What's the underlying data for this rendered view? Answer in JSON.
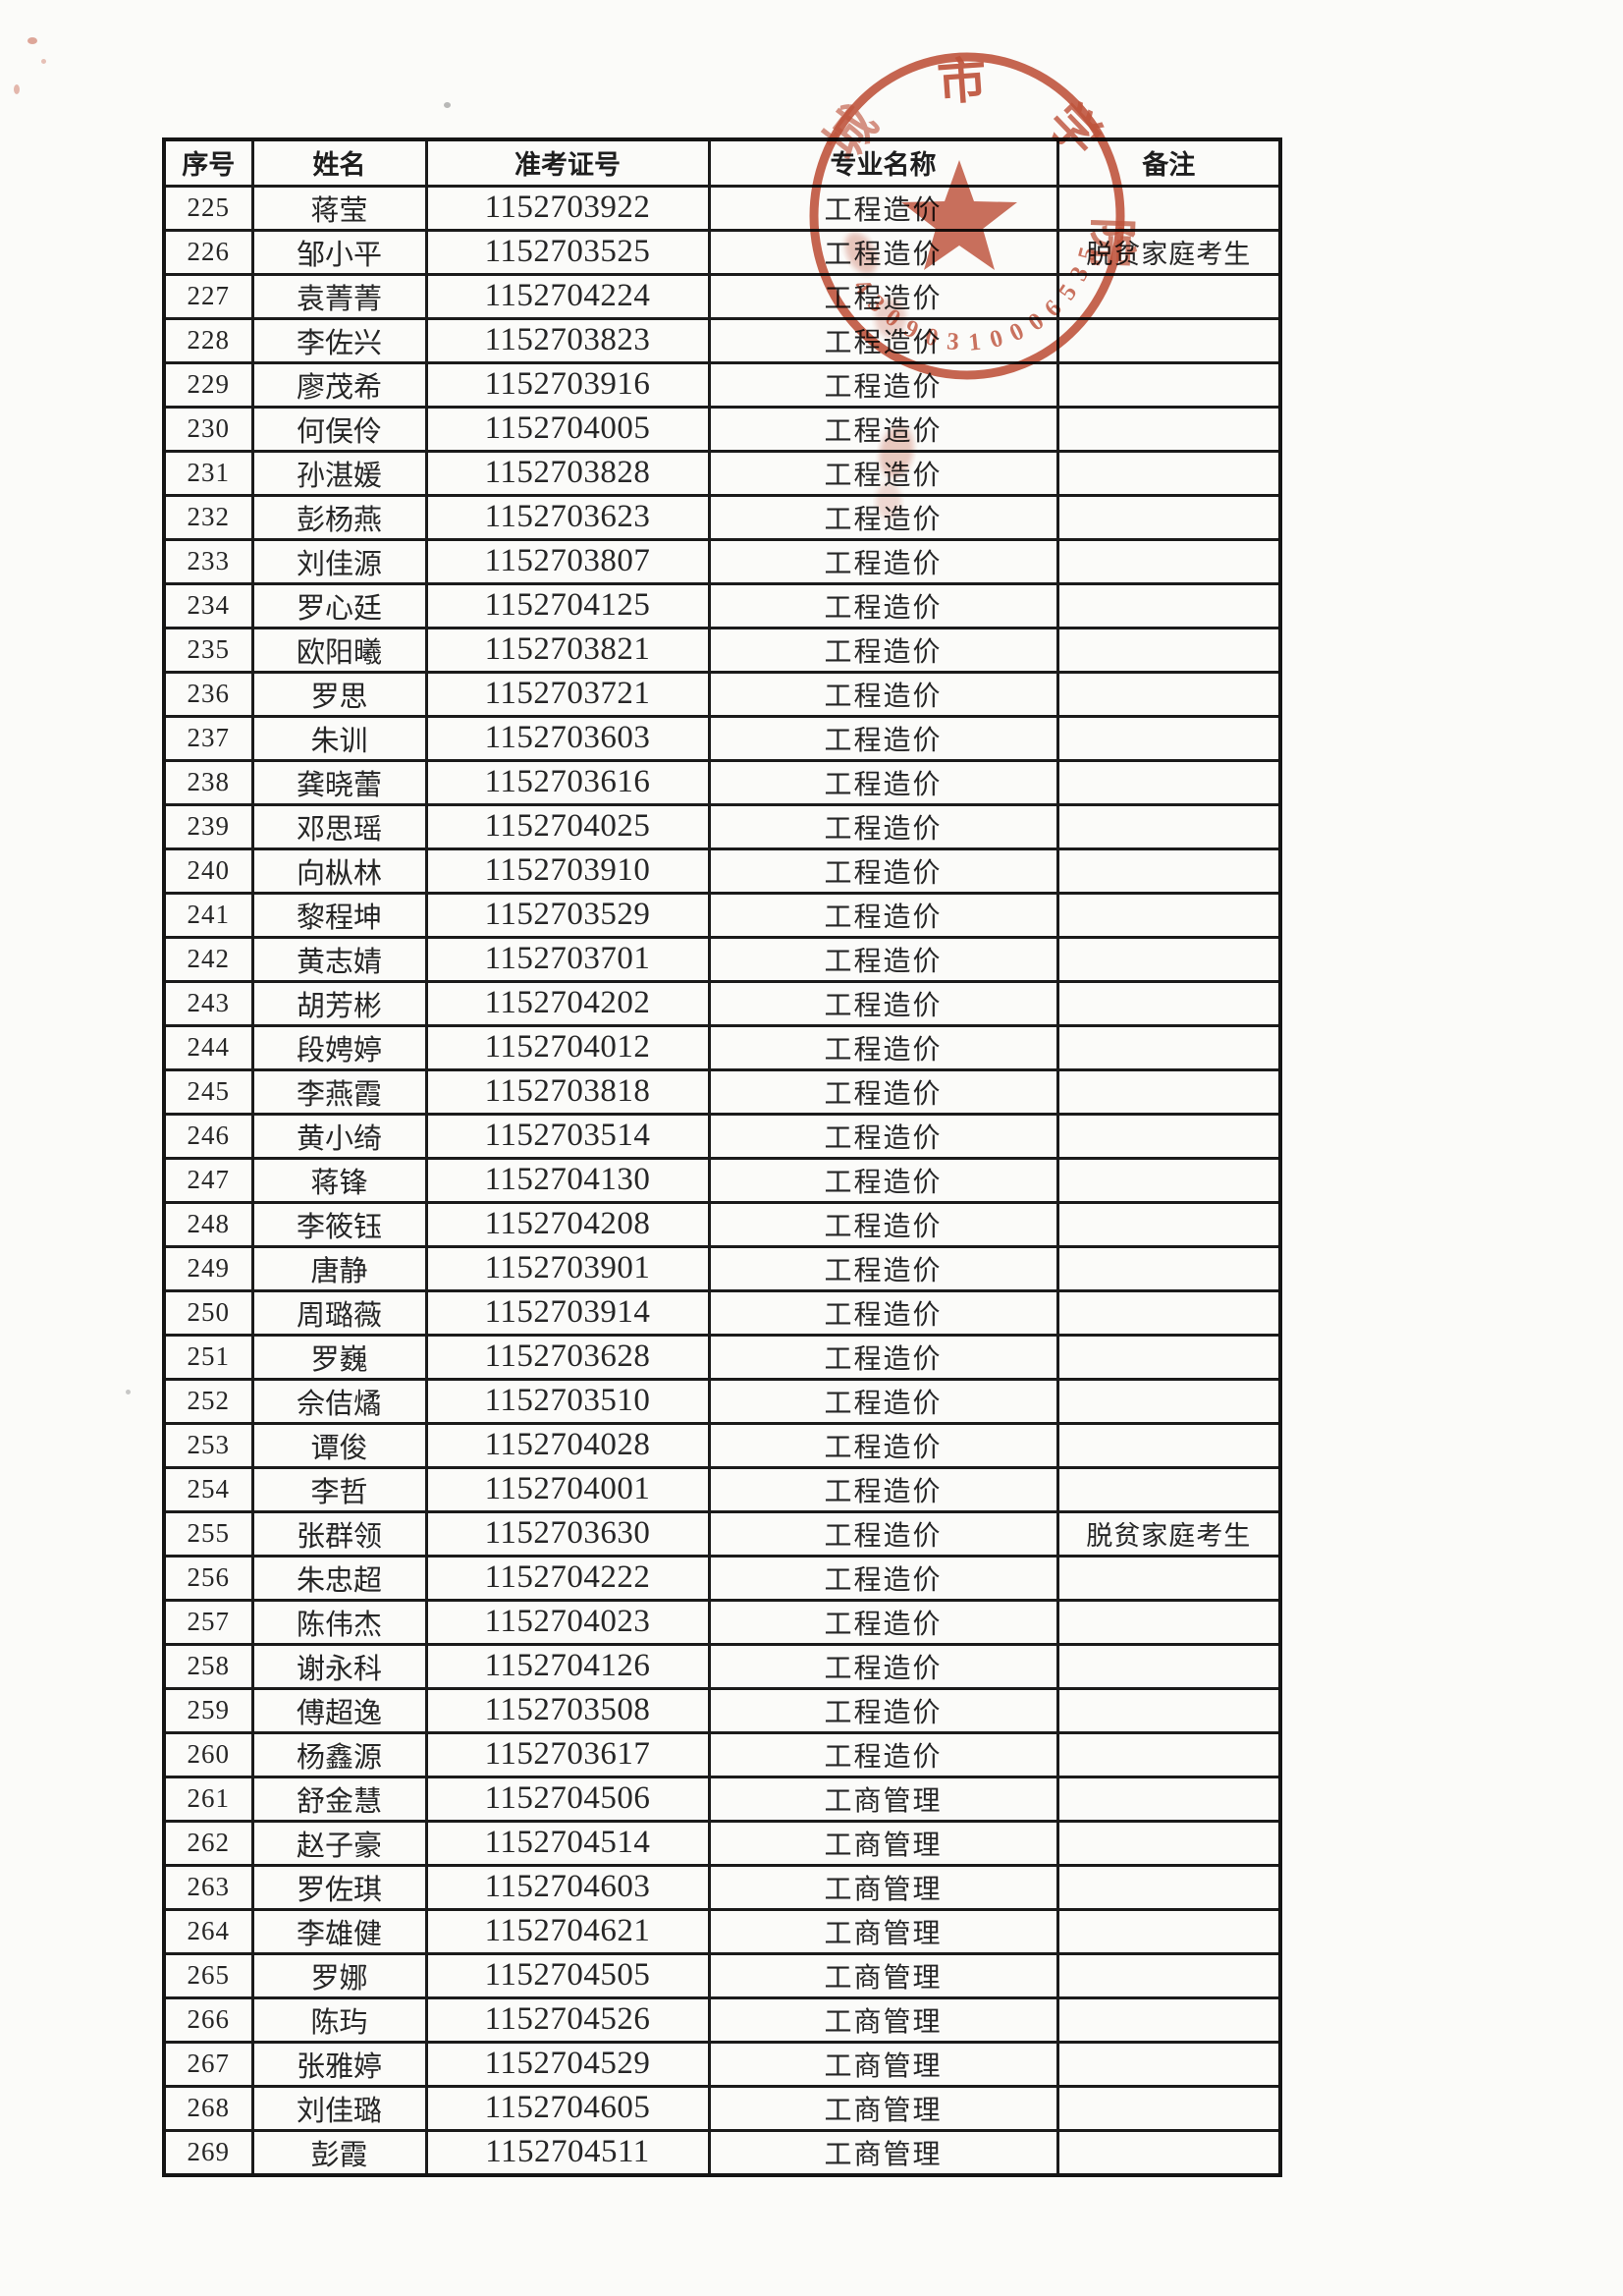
{
  "page": {
    "background": "#fbfbf9",
    "description": "扫描的考生名单表格"
  },
  "table": {
    "headers": [
      "序号",
      "姓名",
      "准考证号",
      "专业名称",
      "备注"
    ],
    "rows": [
      {
        "no": "225",
        "name": "蒋莹",
        "ticket": "1152703922",
        "major": "工程造价",
        "remark": ""
      },
      {
        "no": "226",
        "name": "邹小平",
        "ticket": "1152703525",
        "major": "工程造价",
        "remark": "脱贫家庭考生"
      },
      {
        "no": "227",
        "name": "袁菁菁",
        "ticket": "1152704224",
        "major": "工程造价",
        "remark": ""
      },
      {
        "no": "228",
        "name": "李佐兴",
        "ticket": "1152703823",
        "major": "工程造价",
        "remark": ""
      },
      {
        "no": "229",
        "name": "廖茂希",
        "ticket": "1152703916",
        "major": "工程造价",
        "remark": ""
      },
      {
        "no": "230",
        "name": "何俣伶",
        "ticket": "1152704005",
        "major": "工程造价",
        "remark": ""
      },
      {
        "no": "231",
        "name": "孙湛媛",
        "ticket": "1152703828",
        "major": "工程造价",
        "remark": ""
      },
      {
        "no": "232",
        "name": "彭杨燕",
        "ticket": "1152703623",
        "major": "工程造价",
        "remark": ""
      },
      {
        "no": "233",
        "name": "刘佳源",
        "ticket": "1152703807",
        "major": "工程造价",
        "remark": ""
      },
      {
        "no": "234",
        "name": "罗心廷",
        "ticket": "1152704125",
        "major": "工程造价",
        "remark": ""
      },
      {
        "no": "235",
        "name": "欧阳曦",
        "ticket": "1152703821",
        "major": "工程造价",
        "remark": ""
      },
      {
        "no": "236",
        "name": "罗思",
        "ticket": "1152703721",
        "major": "工程造价",
        "remark": ""
      },
      {
        "no": "237",
        "name": "朱训",
        "ticket": "1152703603",
        "major": "工程造价",
        "remark": ""
      },
      {
        "no": "238",
        "name": "龚晓蕾",
        "ticket": "1152703616",
        "major": "工程造价",
        "remark": ""
      },
      {
        "no": "239",
        "name": "邓思瑶",
        "ticket": "1152704025",
        "major": "工程造价",
        "remark": ""
      },
      {
        "no": "240",
        "name": "向枞林",
        "ticket": "1152703910",
        "major": "工程造价",
        "remark": ""
      },
      {
        "no": "241",
        "name": "黎程坤",
        "ticket": "1152703529",
        "major": "工程造价",
        "remark": ""
      },
      {
        "no": "242",
        "name": "黄志婧",
        "ticket": "1152703701",
        "major": "工程造价",
        "remark": ""
      },
      {
        "no": "243",
        "name": "胡芳彬",
        "ticket": "1152704202",
        "major": "工程造价",
        "remark": ""
      },
      {
        "no": "244",
        "name": "段娉婷",
        "ticket": "1152704012",
        "major": "工程造价",
        "remark": ""
      },
      {
        "no": "245",
        "name": "李燕霞",
        "ticket": "1152703818",
        "major": "工程造价",
        "remark": ""
      },
      {
        "no": "246",
        "name": "黄小绮",
        "ticket": "1152703514",
        "major": "工程造价",
        "remark": ""
      },
      {
        "no": "247",
        "name": "蒋锋",
        "ticket": "1152704130",
        "major": "工程造价",
        "remark": ""
      },
      {
        "no": "248",
        "name": "李筱钰",
        "ticket": "1152704208",
        "major": "工程造价",
        "remark": ""
      },
      {
        "no": "249",
        "name": "唐静",
        "ticket": "1152703901",
        "major": "工程造价",
        "remark": ""
      },
      {
        "no": "250",
        "name": "周璐薇",
        "ticket": "1152703914",
        "major": "工程造价",
        "remark": ""
      },
      {
        "no": "251",
        "name": "罗巍",
        "ticket": "1152703628",
        "major": "工程造价",
        "remark": ""
      },
      {
        "no": "252",
        "name": "佘佶燏",
        "ticket": "1152703510",
        "major": "工程造价",
        "remark": ""
      },
      {
        "no": "253",
        "name": "谭俊",
        "ticket": "1152704028",
        "major": "工程造价",
        "remark": ""
      },
      {
        "no": "254",
        "name": "李哲",
        "ticket": "1152704001",
        "major": "工程造价",
        "remark": ""
      },
      {
        "no": "255",
        "name": "张群领",
        "ticket": "1152703630",
        "major": "工程造价",
        "remark": "脱贫家庭考生"
      },
      {
        "no": "256",
        "name": "朱忠超",
        "ticket": "1152704222",
        "major": "工程造价",
        "remark": ""
      },
      {
        "no": "257",
        "name": "陈伟杰",
        "ticket": "1152704023",
        "major": "工程造价",
        "remark": ""
      },
      {
        "no": "258",
        "name": "谢永科",
        "ticket": "1152704126",
        "major": "工程造价",
        "remark": ""
      },
      {
        "no": "259",
        "name": "傅超逸",
        "ticket": "1152703508",
        "major": "工程造价",
        "remark": ""
      },
      {
        "no": "260",
        "name": "杨鑫源",
        "ticket": "1152703617",
        "major": "工程造价",
        "remark": ""
      },
      {
        "no": "261",
        "name": "舒金慧",
        "ticket": "1152704506",
        "major": "工商管理",
        "remark": ""
      },
      {
        "no": "262",
        "name": "赵子豪",
        "ticket": "1152704514",
        "major": "工商管理",
        "remark": ""
      },
      {
        "no": "263",
        "name": "罗佐琪",
        "ticket": "1152704603",
        "major": "工商管理",
        "remark": ""
      },
      {
        "no": "264",
        "name": "李雄健",
        "ticket": "1152704621",
        "major": "工商管理",
        "remark": ""
      },
      {
        "no": "265",
        "name": "罗娜",
        "ticket": "1152704505",
        "major": "工商管理",
        "remark": ""
      },
      {
        "no": "266",
        "name": "陈玙",
        "ticket": "1152704526",
        "major": "工商管理",
        "remark": ""
      },
      {
        "no": "267",
        "name": "张雅婷",
        "ticket": "1152704529",
        "major": "工商管理",
        "remark": ""
      },
      {
        "no": "268",
        "name": "刘佳璐",
        "ticket": "1152704605",
        "major": "工商管理",
        "remark": ""
      },
      {
        "no": "269",
        "name": "彭霞",
        "ticket": "1152704511",
        "major": "工商管理",
        "remark": ""
      }
    ]
  },
  "stamp": {
    "color": "#c0523a",
    "ring_chars": [
      "城",
      "市",
      "学",
      "院"
    ],
    "serial": "43090310006535",
    "star": "five-pointed-star"
  }
}
